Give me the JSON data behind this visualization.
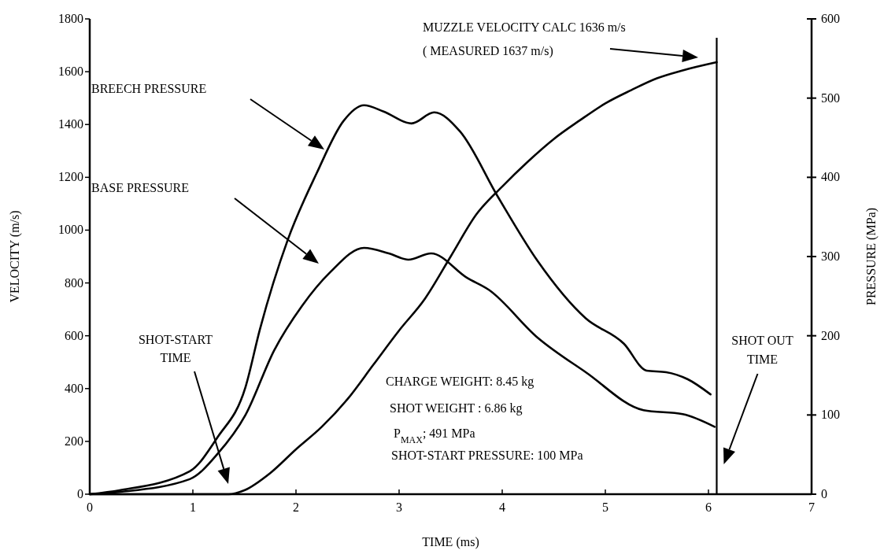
{
  "chart_data": {
    "type": "line",
    "xlabel": "TIME (ms)",
    "ylabel": "VELOCITY (m/s)",
    "y2label": "PRESSURE (MPa)",
    "xlim": [
      0,
      7
    ],
    "xticks": [
      0,
      1,
      2,
      3,
      4,
      5,
      6,
      7
    ],
    "ylim": [
      0,
      1800
    ],
    "yticks": [
      0,
      200,
      400,
      600,
      800,
      1000,
      1200,
      1400,
      1600,
      1800
    ],
    "y2lim": [
      0,
      600
    ],
    "y2ticks": [
      0,
      100,
      200,
      300,
      400,
      500,
      600
    ],
    "grid": false,
    "marker": "none",
    "line_style": "solid",
    "series": [
      {
        "color": "#000000",
        "x": [
          0,
          1.35,
          1.5,
          1.75,
          2.0,
          2.25,
          2.5,
          2.75,
          3.0,
          3.25,
          3.5,
          3.75,
          4.0,
          4.25,
          4.5,
          4.75,
          5.0,
          5.25,
          5.5,
          5.75,
          6.08
        ],
        "values": [
          0,
          0,
          15,
          80,
          170,
          255,
          360,
          490,
          620,
          740,
          900,
          1060,
          1165,
          1260,
          1345,
          1415,
          1480,
          1530,
          1575,
          1605,
          1636
        ]
      },
      {
        "color": "#000000",
        "axis": "y2",
        "x": [
          0,
          0.29,
          0.97,
          1.24,
          1.51,
          1.65,
          1.92,
          2.2,
          2.46,
          2.66,
          2.85,
          3.12,
          3.34,
          3.59,
          3.96,
          4.34,
          4.81,
          5.18,
          5.4,
          5.59,
          5.8,
          6.02
        ],
        "values": [
          0,
          5,
          29,
          72,
          135,
          208,
          321,
          405,
          471,
          491,
          483,
          468,
          482,
          458,
          375,
          295,
          222,
          190,
          156,
          154,
          145,
          126
        ]
      },
      {
        "color": "#000000",
        "axis": "y2",
        "x": [
          0,
          0.3,
          0.97,
          1.24,
          1.51,
          1.79,
          2.06,
          2.33,
          2.66,
          2.9,
          3.09,
          3.31,
          3.66,
          3.87,
          4.34,
          4.81,
          5.37,
          5.75,
          6.06
        ],
        "values": [
          0,
          3,
          19,
          51,
          100,
          182,
          238,
          280,
          311,
          304,
          296,
          304,
          273,
          258,
          198,
          154,
          106,
          101,
          85
        ]
      }
    ],
    "ref_lines": [
      {
        "axis": "x",
        "value": 6.08,
        "label": "SHOT OUT\nTIME",
        "color": "#000000"
      }
    ],
    "annotations": [
      "MUZZLE VELOCITY CALC 1636 m/s\n( MEASURED 1637 m/s)",
      "BREECH PRESSURE",
      "BASE PRESSURE",
      "SHOT-START\nTIME",
      "CHARGE WEIGHT: 8.45 kg",
      "SHOT WEIGHT : 6.86 kg",
      "P$_{MAX}$; 491 MPa",
      "SHOT-START  PRESSURE: 100 MPa"
    ]
  }
}
